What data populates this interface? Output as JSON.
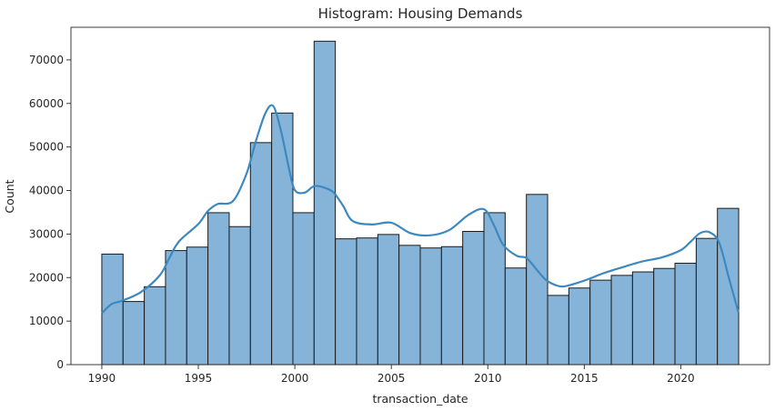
{
  "chart_data": {
    "type": "bar",
    "title": "Histogram: Housing Demands",
    "xlabel": "transaction_date",
    "ylabel": "Count",
    "xlim": [
      1988.4,
      2024.6
    ],
    "ylim": [
      0,
      77500
    ],
    "xticks": [
      1990,
      1995,
      2000,
      2005,
      2010,
      2015,
      2020
    ],
    "yticks": [
      0,
      10000,
      20000,
      30000,
      40000,
      50000,
      60000,
      70000
    ],
    "bin_start": 1990,
    "bin_end": 2023,
    "values": [
      25400,
      14500,
      17900,
      26200,
      27000,
      34900,
      31700,
      51000,
      57800,
      34900,
      74300,
      28900,
      29100,
      29900,
      27400,
      26800,
      27100,
      30600,
      34900,
      22200,
      39100,
      15900,
      17600,
      19400,
      20500,
      21300,
      22100,
      23300,
      29000,
      35900
    ],
    "kde": {
      "x": [
        1990,
        1990.5,
        1991,
        1992,
        1993,
        1993.5,
        1994,
        1995,
        1995.5,
        1996,
        1996.8,
        1997.5,
        1998,
        1998.5,
        1998.9,
        1999.3,
        1999.7,
        2000,
        2000.5,
        2001,
        2001.5,
        2002,
        2002.5,
        2003,
        2004,
        2005,
        2006,
        2007,
        2008,
        2009,
        2009.8,
        2010.3,
        2010.8,
        2011.5,
        2012,
        2012.5,
        2013,
        2013.5,
        2014,
        2015,
        2016,
        2017,
        2018,
        2019,
        2020,
        2020.5,
        2021,
        2021.5,
        2022,
        2022.5,
        2023
      ],
      "y": [
        11800,
        13900,
        14600,
        16600,
        20500,
        24500,
        28300,
        32300,
        35300,
        36900,
        37600,
        43900,
        51600,
        58000,
        59300,
        53400,
        45000,
        40100,
        39500,
        41000,
        40700,
        39600,
        36500,
        33000,
        32200,
        32600,
        30200,
        29700,
        30900,
        34400,
        35700,
        32200,
        27500,
        25000,
        24500,
        22000,
        19500,
        18300,
        18000,
        19300,
        21000,
        22400,
        23700,
        24600,
        26300,
        28200,
        30200,
        30400,
        27900,
        19800,
        11800
      ]
    }
  }
}
